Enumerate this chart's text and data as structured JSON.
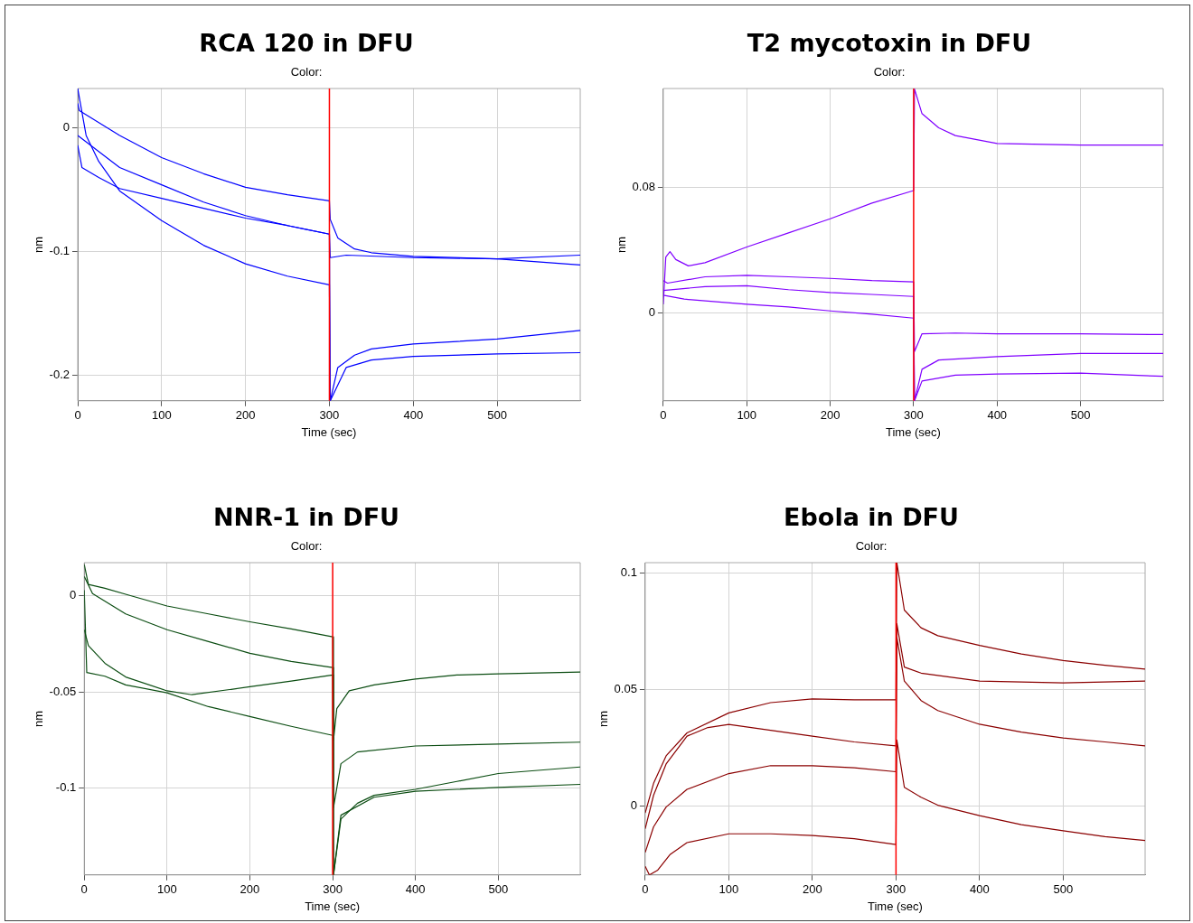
{
  "chart_data": [
    {
      "type": "line",
      "title": "RCA 120 in DFU",
      "subtitle": "Color:",
      "xlabel": "Time (sec)",
      "ylabel": "nm",
      "xlim": [
        0,
        599
      ],
      "ylim": [
        -0.221,
        0.032
      ],
      "xticks": [
        0,
        100,
        200,
        300,
        400,
        500
      ],
      "yticks": [
        -0.2,
        -0.1,
        0
      ],
      "grid": true,
      "ref_lines": [
        {
          "axis": "x",
          "value": 300,
          "color": "#ff0000"
        }
      ],
      "series": [
        {
          "color": "#0000ff",
          "x": [
            0,
            2,
            50,
            100,
            150,
            200,
            250,
            300,
            301,
            310,
            330,
            350,
            400,
            500,
            599
          ],
          "values": [
            0.02,
            0.014,
            -0.006,
            -0.024,
            -0.037,
            -0.048,
            -0.054,
            -0.059,
            -0.074,
            -0.089,
            -0.098,
            -0.101,
            -0.104,
            -0.106,
            -0.103
          ]
        },
        {
          "color": "#0000ff",
          "x": [
            0,
            50,
            100,
            150,
            200,
            250,
            300,
            301,
            320,
            400,
            500,
            599
          ],
          "values": [
            -0.006,
            -0.032,
            -0.046,
            -0.06,
            -0.071,
            -0.079,
            -0.086,
            -0.105,
            -0.103,
            -0.105,
            -0.106,
            -0.111
          ]
        },
        {
          "color": "#0000ff",
          "x": [
            0,
            10,
            25,
            50,
            100,
            150,
            200,
            250,
            300,
            301,
            310,
            330,
            350,
            400,
            500,
            599
          ],
          "values": [
            0.032,
            -0.006,
            -0.027,
            -0.051,
            -0.075,
            -0.095,
            -0.11,
            -0.12,
            -0.127,
            -0.221,
            -0.194,
            -0.184,
            -0.179,
            -0.175,
            -0.171,
            -0.164
          ]
        },
        {
          "color": "#0000ff",
          "x": [
            0,
            5,
            25,
            50,
            100,
            150,
            200,
            250,
            300,
            301,
            320,
            350,
            400,
            500,
            599
          ],
          "values": [
            -0.014,
            -0.032,
            -0.04,
            -0.049,
            -0.057,
            -0.065,
            -0.073,
            -0.079,
            -0.086,
            -0.221,
            -0.194,
            -0.188,
            -0.185,
            -0.183,
            -0.182
          ]
        }
      ]
    },
    {
      "type": "line",
      "title": "T2 mycotoxin in DFU",
      "subtitle": "Color:",
      "xlabel": "Time (sec)",
      "ylabel": "nm",
      "xlim": [
        0,
        599
      ],
      "ylim": [
        -0.056,
        0.143
      ],
      "xticks": [
        0,
        100,
        200,
        300,
        400,
        500
      ],
      "yticks": [
        0,
        0.08
      ],
      "grid": true,
      "ref_lines": [
        {
          "axis": "x",
          "value": 300,
          "color": "#ff0000"
        }
      ],
      "series": [
        {
          "color": "#8000ff",
          "x": [
            0,
            3,
            8,
            15,
            30,
            50,
            100,
            150,
            200,
            250,
            300,
            301,
            310,
            330,
            350,
            400,
            500,
            599
          ],
          "values": [
            0.0055,
            0.0356,
            0.039,
            0.034,
            0.03,
            0.032,
            0.042,
            0.051,
            0.06,
            0.07,
            0.078,
            0.1427,
            0.127,
            0.118,
            0.113,
            0.108,
            0.107,
            0.107
          ]
        },
        {
          "color": "#8000ff",
          "x": [
            0,
            5,
            50,
            100,
            150,
            200,
            250,
            300,
            301,
            310,
            350,
            400,
            500,
            599
          ],
          "values": [
            0.0206,
            0.019,
            0.023,
            0.024,
            0.023,
            0.022,
            0.0206,
            0.0198,
            -0.0246,
            -0.0133,
            -0.0128,
            -0.0133,
            -0.0133,
            -0.0138
          ]
        },
        {
          "color": "#8000ff",
          "x": [
            0,
            50,
            100,
            150,
            200,
            250,
            300,
            301,
            310,
            330,
            400,
            500,
            599
          ],
          "values": [
            0.0143,
            0.0168,
            0.0173,
            0.0148,
            0.013,
            0.0118,
            0.0105,
            -0.056,
            -0.0359,
            -0.03,
            -0.0278,
            -0.0258,
            -0.0258
          ]
        },
        {
          "color": "#8000ff",
          "x": [
            0,
            25,
            100,
            150,
            200,
            250,
            300,
            301,
            310,
            350,
            400,
            500,
            599
          ],
          "values": [
            0.0113,
            0.0088,
            0.0055,
            0.0038,
            0.0013,
            -0.0008,
            -0.0033,
            -0.056,
            -0.0434,
            -0.0396,
            -0.0389,
            -0.0384,
            -0.0404
          ]
        }
      ]
    },
    {
      "type": "line",
      "title": "NNR-1 in DFU",
      "subtitle": "Color:",
      "xlabel": "Time (sec)",
      "ylabel": "nm",
      "xlim": [
        0,
        599
      ],
      "ylim": [
        -0.145,
        0.017
      ],
      "xticks": [
        0,
        100,
        200,
        300,
        400,
        500
      ],
      "yticks": [
        -0.1,
        -0.05,
        0
      ],
      "grid": true,
      "ref_lines": [
        {
          "axis": "x",
          "value": 300,
          "color": "#ff0000"
        }
      ],
      "series": [
        {
          "color": "#0b4d12",
          "x": [
            0,
            5,
            25,
            50,
            100,
            150,
            200,
            250,
            300,
            301,
            305,
            320,
            350,
            400,
            450,
            500,
            599
          ],
          "values": [
            0.016,
            0.0057,
            0.0037,
            0.0006,
            -0.0055,
            -0.0096,
            -0.0137,
            -0.0174,
            -0.0215,
            -0.075,
            -0.0587,
            -0.0495,
            -0.0464,
            -0.0434,
            -0.0413,
            -0.0407,
            -0.0397
          ]
        },
        {
          "color": "#0b4d12",
          "x": [
            0,
            10,
            50,
            100,
            150,
            200,
            250,
            300,
            301,
            310,
            330,
            400,
            500,
            599
          ],
          "values": [
            0.0098,
            0.001,
            -0.0096,
            -0.0178,
            -0.0239,
            -0.03,
            -0.0342,
            -0.0374,
            -0.11,
            -0.0873,
            -0.0812,
            -0.0781,
            -0.0771,
            -0.0761
          ]
        },
        {
          "color": "#0b4d12",
          "x": [
            0,
            5,
            25,
            50,
            100,
            130,
            200,
            250,
            300,
            301,
            310,
            330,
            350,
            400,
            450,
            500,
            599
          ],
          "values": [
            -0.0178,
            -0.026,
            -0.0352,
            -0.0423,
            -0.0495,
            -0.0515,
            -0.0474,
            -0.0444,
            -0.0413,
            -0.145,
            -0.116,
            -0.1078,
            -0.1037,
            -0.1006,
            -0.0965,
            -0.0924,
            -0.089
          ]
        },
        {
          "color": "#0b4d12",
          "x": [
            0,
            3,
            25,
            50,
            100,
            150,
            200,
            250,
            300,
            301,
            310,
            350,
            400,
            450,
            500,
            599
          ],
          "values": [
            0.0027,
            -0.04,
            -0.0419,
            -0.0464,
            -0.0505,
            -0.0577,
            -0.0628,
            -0.0679,
            -0.0726,
            -0.145,
            -0.114,
            -0.1047,
            -0.1016,
            -0.1006,
            -0.0996,
            -0.098
          ]
        }
      ]
    },
    {
      "type": "line",
      "title": "Ebola in DFU",
      "subtitle": "Color:",
      "xlabel": "Time (sec)",
      "ylabel": "nm",
      "xlim": [
        0,
        598
      ],
      "ylim": [
        -0.0297,
        0.1046
      ],
      "xticks": [
        0,
        100,
        200,
        300,
        400,
        500
      ],
      "yticks": [
        0,
        0.05,
        0.1
      ],
      "grid": true,
      "ref_lines": [
        {
          "axis": "x",
          "value": 300,
          "color": "#ff0000"
        }
      ],
      "series": [
        {
          "color": "#8b0000",
          "x": [
            0,
            10,
            25,
            50,
            100,
            150,
            200,
            250,
            300,
            301,
            310,
            330,
            350,
            400,
            450,
            500,
            550,
            598
          ],
          "values": [
            -0.003,
            0.0097,
            0.0215,
            0.0314,
            0.04,
            0.0444,
            0.046,
            0.0456,
            0.0456,
            0.1046,
            0.0842,
            0.0766,
            0.0732,
            0.069,
            0.0653,
            0.0625,
            0.0605,
            0.0588
          ]
        },
        {
          "color": "#8b0000",
          "x": [
            0,
            10,
            25,
            50,
            75,
            100,
            150,
            200,
            250,
            300,
            301,
            310,
            330,
            400,
            500,
            598
          ],
          "values": [
            -0.0098,
            0.0046,
            0.018,
            0.03,
            0.0337,
            0.035,
            0.0325,
            0.03,
            0.0275,
            0.0258,
            0.0783,
            0.0597,
            0.0571,
            0.0537,
            0.0529,
            0.0537
          ]
        },
        {
          "color": "#8b0000",
          "x": [
            0,
            10,
            25,
            50,
            100,
            150,
            200,
            250,
            300,
            301,
            310,
            330,
            350,
            400,
            450,
            500,
            550,
            598
          ],
          "values": [
            -0.02,
            -0.009,
            -0.0005,
            0.0071,
            0.0139,
            0.0173,
            0.0173,
            0.0164,
            0.0147,
            0.0724,
            0.0537,
            0.0453,
            0.041,
            0.0351,
            0.0317,
            0.0292,
            0.0275,
            0.0258
          ]
        },
        {
          "color": "#8b0000",
          "x": [
            0,
            5,
            15,
            30,
            50,
            100,
            150,
            200,
            250,
            300,
            301,
            310,
            330,
            350,
            400,
            450,
            500,
            550,
            598
          ],
          "values": [
            -0.026,
            -0.0297,
            -0.0276,
            -0.0208,
            -0.0158,
            -0.012,
            -0.012,
            -0.0127,
            -0.0141,
            -0.0166,
            0.0283,
            0.008,
            0.0037,
            0.0003,
            -0.0042,
            -0.0081,
            -0.0107,
            -0.0132,
            -0.0149
          ]
        }
      ]
    }
  ]
}
